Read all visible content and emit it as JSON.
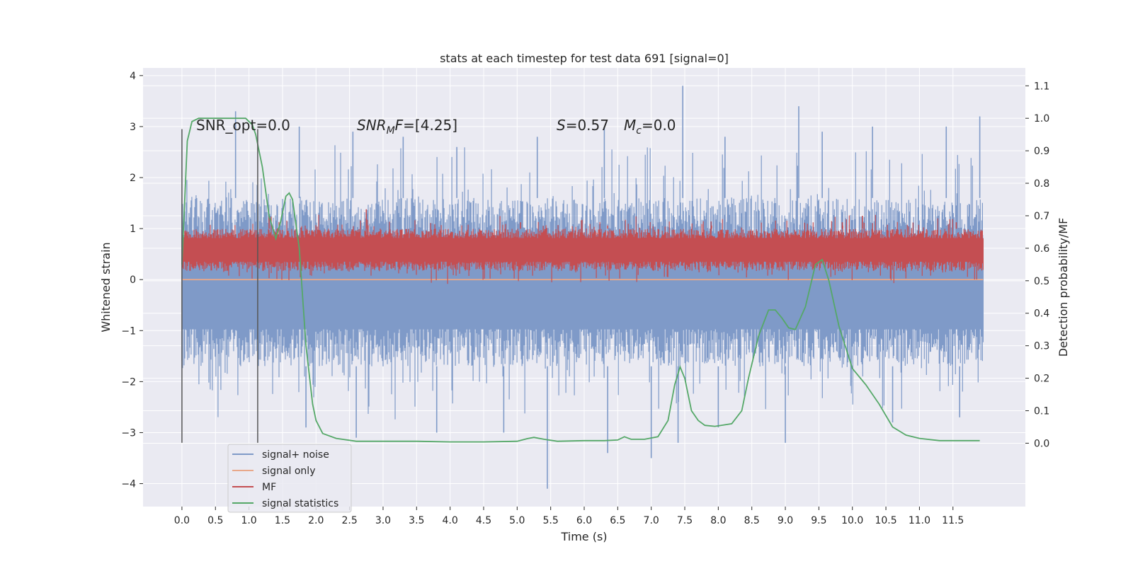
{
  "chart_data": {
    "type": "line",
    "title": "stats at each timestep for test data 691 [signal=0]",
    "xlabel": "Time (s)",
    "ylabel_left": "Whitened strain",
    "ylabel_right": "Detection probability/MF",
    "xlim": [
      -0.58,
      12.58
    ],
    "ylim_left": [
      -4.45,
      4.15
    ],
    "ylim_right": [
      -0.195,
      1.155
    ],
    "x_ticks": [
      0.0,
      0.5,
      1.0,
      1.5,
      2.0,
      2.5,
      3.0,
      3.5,
      4.0,
      4.5,
      5.0,
      5.5,
      6.0,
      6.5,
      7.0,
      7.5,
      8.0,
      8.5,
      9.0,
      9.5,
      10.0,
      10.5,
      11.0,
      11.5
    ],
    "x_tick_labels": [
      "0.0",
      "0.5",
      "1.0",
      "1.5",
      "2.0",
      "2.5",
      "3.0",
      "3.5",
      "4.0",
      "4.5",
      "5.0",
      "5.5",
      "6.0",
      "6.5",
      "7.0",
      "7.5",
      "8.0",
      "8.5",
      "9.0",
      "9.5",
      "10.0",
      "10.5",
      "11.0",
      "11.5"
    ],
    "y_ticks_left": [
      -4,
      -3,
      -2,
      -1,
      0,
      1,
      2,
      3,
      4
    ],
    "y_tick_labels_left": [
      "−4",
      "−3",
      "−2",
      "−1",
      "0",
      "1",
      "2",
      "3",
      "4"
    ],
    "y_ticks_right": [
      0.0,
      0.1,
      0.2,
      0.3,
      0.4,
      0.5,
      0.6,
      0.7,
      0.8,
      0.9,
      1.0,
      1.1
    ],
    "y_tick_labels_right": [
      "0.0",
      "0.1",
      "0.2",
      "0.3",
      "0.4",
      "0.5",
      "0.6",
      "0.7",
      "0.8",
      "0.9",
      "1.0",
      "1.1"
    ],
    "grid": true,
    "legend_position": "lower-left",
    "annotations": {
      "snr_opt": "SNR_opt=0.0",
      "snr_mf_prefix": "SNR",
      "snr_mf_sub": "M",
      "snr_mf_suffix": "F=[4.25]",
      "s_sym": "S",
      "s_val": "=0.57",
      "mc_sym": "M",
      "mc_sub": "c",
      "mc_val": "=0.0"
    },
    "window_markers": {
      "x": [
        0.0,
        1.13
      ],
      "y_range_left": [
        -3.2,
        2.95
      ]
    },
    "series": [
      {
        "name": "signal+ noise",
        "color": "#7f9ac8",
        "axis": "left",
        "kind": "noise_band",
        "x_range": [
          0.0,
          11.95
        ],
        "band_low": -1.7,
        "band_high": 1.6,
        "spikes_up": [
          {
            "x": 0.8,
            "y": 3.3
          },
          {
            "x": 1.75,
            "y": 3.0
          },
          {
            "x": 2.55,
            "y": 2.9
          },
          {
            "x": 3.3,
            "y": 2.8
          },
          {
            "x": 4.1,
            "y": 2.6
          },
          {
            "x": 5.3,
            "y": 2.8
          },
          {
            "x": 6.3,
            "y": 3.0
          },
          {
            "x": 7.47,
            "y": 3.8
          },
          {
            "x": 8.1,
            "y": 2.8
          },
          {
            "x": 9.2,
            "y": 3.4
          },
          {
            "x": 9.55,
            "y": 2.9
          },
          {
            "x": 10.3,
            "y": 3.0
          },
          {
            "x": 11.4,
            "y": 3.0
          },
          {
            "x": 11.9,
            "y": 3.2
          }
        ],
        "spikes_down": [
          {
            "x": 1.85,
            "y": -2.9
          },
          {
            "x": 2.6,
            "y": -3.1
          },
          {
            "x": 3.8,
            "y": -3.0
          },
          {
            "x": 4.8,
            "y": -3.0
          },
          {
            "x": 5.45,
            "y": -4.1
          },
          {
            "x": 6.35,
            "y": -3.4
          },
          {
            "x": 7.0,
            "y": -3.5
          },
          {
            "x": 7.4,
            "y": -3.2
          },
          {
            "x": 8.0,
            "y": -2.9
          },
          {
            "x": 9.0,
            "y": -3.2
          },
          {
            "x": 10.6,
            "y": -2.8
          },
          {
            "x": 11.6,
            "y": -2.7
          }
        ]
      },
      {
        "name": "signal only",
        "color": "#e8a88a",
        "axis": "left",
        "kind": "line",
        "x": [
          0.0,
          11.95
        ],
        "y": [
          0.0,
          0.0
        ]
      },
      {
        "name": "MF",
        "color": "#c44e52",
        "axis": "right",
        "kind": "noise_band",
        "x_range": [
          0.0,
          11.95
        ],
        "band_low": 0.53,
        "band_high": 0.66,
        "spikes_up": [
          {
            "x": 1.3,
            "y": 0.7
          },
          {
            "x": 2.75,
            "y": 0.72
          },
          {
            "x": 5.05,
            "y": 0.68
          },
          {
            "x": 6.35,
            "y": 0.67
          },
          {
            "x": 7.15,
            "y": 0.66
          },
          {
            "x": 7.9,
            "y": 0.67
          },
          {
            "x": 9.85,
            "y": 0.68
          },
          {
            "x": 10.15,
            "y": 0.7
          },
          {
            "x": 11.55,
            "y": 0.68
          }
        ],
        "spikes_down": []
      },
      {
        "name": "signal statistics",
        "color": "#55a868",
        "axis": "right",
        "kind": "line",
        "x": [
          0.0,
          0.08,
          0.15,
          0.25,
          0.4,
          0.6,
          0.8,
          0.95,
          1.05,
          1.1,
          1.2,
          1.3,
          1.4,
          1.47,
          1.55,
          1.6,
          1.65,
          1.75,
          1.85,
          1.95,
          2.0,
          2.1,
          2.3,
          2.6,
          3.0,
          3.5,
          4.0,
          4.5,
          5.0,
          5.15,
          5.25,
          5.4,
          5.6,
          6.0,
          6.3,
          6.5,
          6.6,
          6.7,
          6.9,
          7.1,
          7.25,
          7.35,
          7.43,
          7.5,
          7.6,
          7.7,
          7.8,
          7.95,
          8.2,
          8.35,
          8.45,
          8.6,
          8.75,
          8.85,
          8.95,
          9.05,
          9.15,
          9.3,
          9.45,
          9.55,
          9.65,
          9.8,
          10.0,
          10.2,
          10.4,
          10.6,
          10.8,
          11.0,
          11.3,
          11.6,
          11.9
        ],
        "y": [
          0.55,
          0.93,
          0.99,
          1.0,
          1.0,
          1.0,
          1.0,
          1.0,
          0.98,
          0.95,
          0.85,
          0.7,
          0.63,
          0.68,
          0.76,
          0.77,
          0.75,
          0.6,
          0.3,
          0.12,
          0.07,
          0.03,
          0.015,
          0.006,
          0.006,
          0.006,
          0.004,
          0.004,
          0.006,
          0.014,
          0.018,
          0.012,
          0.006,
          0.008,
          0.008,
          0.01,
          0.02,
          0.012,
          0.012,
          0.02,
          0.07,
          0.18,
          0.235,
          0.2,
          0.1,
          0.07,
          0.055,
          0.052,
          0.06,
          0.1,
          0.2,
          0.33,
          0.41,
          0.41,
          0.385,
          0.355,
          0.35,
          0.42,
          0.55,
          0.565,
          0.5,
          0.36,
          0.23,
          0.18,
          0.12,
          0.05,
          0.025,
          0.015,
          0.008,
          0.008,
          0.008
        ]
      }
    ]
  }
}
